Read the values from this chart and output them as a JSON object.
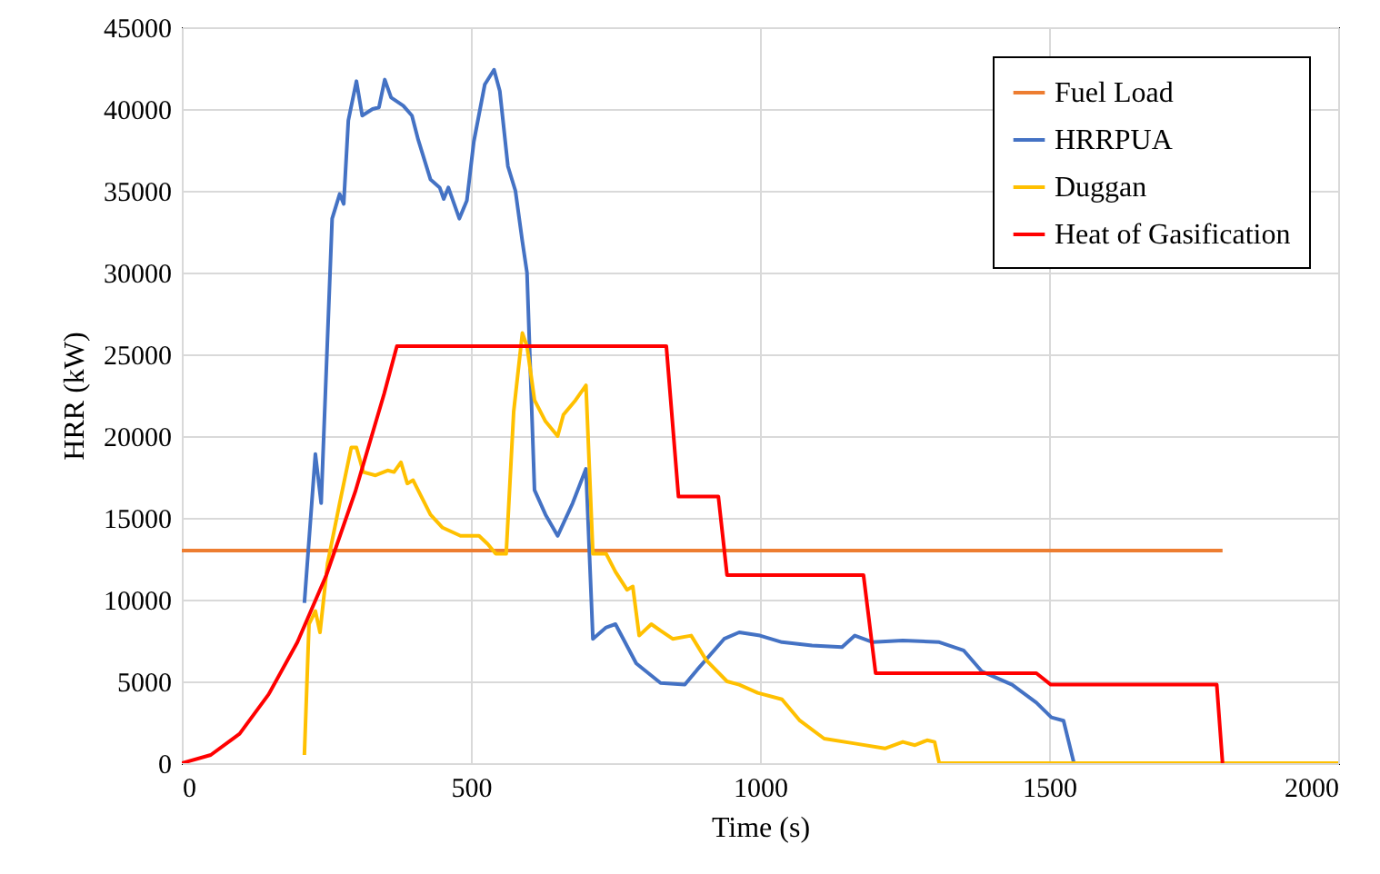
{
  "chart_data": {
    "type": "line",
    "xlabel": "Time (s)",
    "ylabel": "HRR (kW)",
    "xlim": [
      0,
      2000
    ],
    "ylim": [
      0,
      45000
    ],
    "xticks": [
      0,
      500,
      1000,
      1500,
      2000
    ],
    "yticks": [
      0,
      5000,
      10000,
      15000,
      20000,
      25000,
      30000,
      35000,
      40000,
      45000
    ],
    "grid": true,
    "legend": "top right",
    "series": [
      {
        "name": "Fuel Load",
        "color": "#ed7d31",
        "x": [
          0,
          1800
        ],
        "values": [
          13000,
          13000
        ]
      },
      {
        "name": "HRRPUA",
        "color": "#4472c4",
        "x": [
          212,
          231,
          241,
          260,
          273,
          280,
          288,
          302,
          312,
          330,
          341,
          351,
          362,
          383,
          398,
          409,
          430,
          446,
          453,
          461,
          480,
          493,
          505,
          524,
          540,
          550,
          564,
          577,
          589,
          597,
          610,
          629,
          650,
          676,
          699,
          711,
          734,
          750,
          786,
          828,
          870,
          891,
          938,
          964,
          1000,
          1038,
          1090,
          1142,
          1164,
          1195,
          1247,
          1310,
          1352,
          1384,
          1436,
          1478,
          1504,
          1525,
          1543
        ],
        "values": [
          9800,
          18900,
          15900,
          33300,
          34800,
          34200,
          39300,
          41700,
          39600,
          40000,
          40100,
          41800,
          40700,
          40200,
          39600,
          38100,
          35700,
          35200,
          34500,
          35200,
          33300,
          34400,
          38000,
          41500,
          42400,
          41100,
          36500,
          35000,
          31900,
          30000,
          16700,
          15200,
          13900,
          15900,
          18000,
          7600,
          8300,
          8500,
          6100,
          4900,
          4800,
          5700,
          7600,
          8000,
          7800,
          7400,
          7200,
          7100,
          7800,
          7400,
          7500,
          7400,
          6900,
          5600,
          4800,
          3700,
          2800,
          2600,
          0
        ]
      },
      {
        "name": "Duggan",
        "color": "#ffc000",
        "x": [
          212,
          220,
          231,
          239,
          252,
          273,
          293,
          302,
          314,
          335,
          356,
          367,
          379,
          390,
          400,
          430,
          451,
          482,
          503,
          514,
          529,
          543,
          561,
          574,
          589,
          597,
          610,
          629,
          650,
          660,
          681,
          699,
          711,
          734,
          750,
          770,
          780,
          791,
          812,
          828,
          849,
          881,
          907,
          943,
          964,
          996,
          1038,
          1069,
          1111,
          1164,
          1216,
          1247,
          1268,
          1289,
          1302,
          1310,
          2000
        ],
        "values": [
          500,
          8500,
          9300,
          8000,
          12200,
          15900,
          19300,
          19300,
          17800,
          17600,
          17900,
          17800,
          18400,
          17100,
          17300,
          15200,
          14400,
          13900,
          13900,
          13900,
          13400,
          12800,
          12800,
          21500,
          26300,
          25500,
          22200,
          20900,
          20000,
          21300,
          22200,
          23100,
          12800,
          12800,
          11700,
          10600,
          10800,
          7800,
          8500,
          8100,
          7600,
          7800,
          6300,
          5000,
          4800,
          4300,
          3900,
          2600,
          1500,
          1200,
          900,
          1300,
          1100,
          1400,
          1300,
          0,
          0
        ]
      },
      {
        "name": "Heat of Gasification",
        "color": "#ff0000",
        "x": [
          0,
          50,
          100,
          150,
          200,
          250,
          300,
          350,
          372,
          838,
          859,
          928,
          943,
          1179,
          1200,
          1478,
          1503,
          1790,
          1800
        ],
        "values": [
          0,
          500,
          1800,
          4200,
          7400,
          11500,
          16600,
          22600,
          25500,
          25500,
          16300,
          16300,
          11500,
          11500,
          5500,
          5500,
          4800,
          4800,
          0
        ]
      }
    ]
  }
}
